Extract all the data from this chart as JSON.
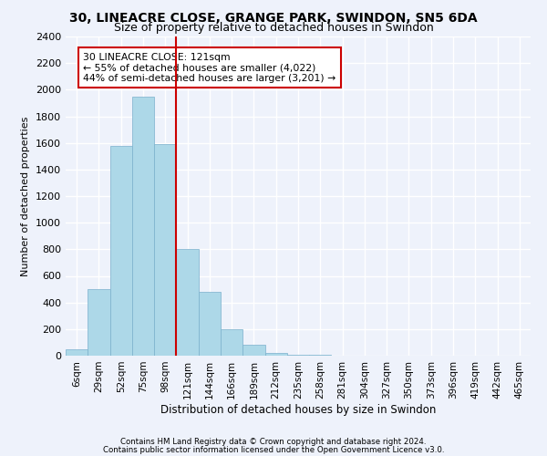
{
  "title1": "30, LINEACRE CLOSE, GRANGE PARK, SWINDON, SN5 6DA",
  "title2": "Size of property relative to detached houses in Swindon",
  "xlabel": "Distribution of detached houses by size in Swindon",
  "ylabel": "Number of detached properties",
  "bar_labels": [
    "6sqm",
    "29sqm",
    "52sqm",
    "75sqm",
    "98sqm",
    "121sqm",
    "144sqm",
    "166sqm",
    "189sqm",
    "212sqm",
    "235sqm",
    "258sqm",
    "281sqm",
    "304sqm",
    "327sqm",
    "350sqm",
    "373sqm",
    "396sqm",
    "419sqm",
    "442sqm",
    "465sqm"
  ],
  "bar_values": [
    50,
    500,
    1580,
    1950,
    1590,
    800,
    480,
    200,
    80,
    20,
    10,
    5,
    3,
    2,
    1,
    1,
    0,
    0,
    0,
    0,
    0
  ],
  "bar_color": "#add8e8",
  "bar_edge_color": "#7ab0cc",
  "vline_index": 5,
  "annotation_text": "30 LINEACRE CLOSE: 121sqm\n← 55% of detached houses are smaller (4,022)\n44% of semi-detached houses are larger (3,201) →",
  "annotation_box_color": "#ffffff",
  "annotation_box_edge": "#cc0000",
  "vline_color": "#cc0000",
  "ylim": [
    0,
    2400
  ],
  "yticks": [
    0,
    200,
    400,
    600,
    800,
    1000,
    1200,
    1400,
    1600,
    1800,
    2000,
    2200,
    2400
  ],
  "footnote1": "Contains HM Land Registry data © Crown copyright and database right 2024.",
  "footnote2": "Contains public sector information licensed under the Open Government Licence v3.0.",
  "bg_color": "#eef2fb",
  "grid_color": "#ffffff",
  "title1_fontsize": 10,
  "title2_fontsize": 9
}
